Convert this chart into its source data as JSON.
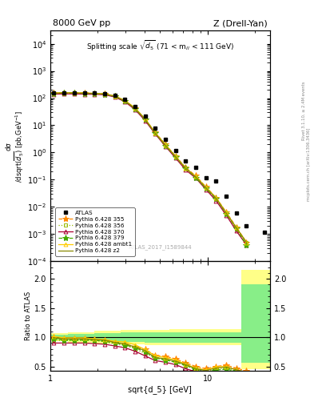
{
  "title_left": "8000 GeV pp",
  "title_right": "Z (Drell-Yan)",
  "plot_title": "Splitting scale $\\sqrt{d_5}$ (71 < m$_{ll}$ < 111 GeV)",
  "ylabel_main": "d$\\sigma$/dsqrt($d_5$) [pb,GeV$^{-1}$]",
  "ylabel_ratio": "Ratio to ATLAS",
  "xlabel": "sqrt{d_5} [GeV]",
  "watermark": "ATLAS_2017_I1589844",
  "right_label1": "Rivet 3.1.10, ≥ 2.4M events",
  "right_label2": "mcplots.cern.ch [arXiv:1306.3436]",
  "xlim": [
    1.0,
    25.0
  ],
  "ylim_main": [
    0.0001,
    30000.0
  ],
  "ylim_ratio": [
    0.42,
    2.3
  ],
  "data_x": [
    1.05,
    1.22,
    1.42,
    1.65,
    1.91,
    2.22,
    2.57,
    2.98,
    3.46,
    4.01,
    4.65,
    5.4,
    6.26,
    7.26,
    8.42,
    9.77,
    11.33,
    13.15,
    15.26,
    17.7,
    23.0
  ],
  "data_y": [
    155,
    160,
    160,
    158,
    155,
    150,
    130,
    90,
    50,
    22,
    8.0,
    3.0,
    1.2,
    0.5,
    0.28,
    0.12,
    0.09,
    0.025,
    0.006,
    0.002,
    0.0012
  ],
  "lines": [
    {
      "label": "Pythia 6.428 355",
      "color": "#ff8800",
      "linestyle": "--",
      "marker": "*",
      "x": [
        1.05,
        1.22,
        1.42,
        1.65,
        1.91,
        2.22,
        2.57,
        2.98,
        3.46,
        4.01,
        4.65,
        5.4,
        6.26,
        7.26,
        8.42,
        9.77,
        11.33,
        13.15,
        15.26,
        17.7
      ],
      "y": [
        155,
        155,
        155,
        152,
        148,
        142,
        118,
        80,
        42,
        17,
        5.5,
        2.0,
        0.75,
        0.28,
        0.14,
        0.055,
        0.022,
        0.0065,
        0.0018,
        0.0005
      ],
      "ratio": [
        1.0,
        0.97,
        0.97,
        0.97,
        0.96,
        0.95,
        0.91,
        0.88,
        0.84,
        0.79,
        0.69,
        0.67,
        0.63,
        0.56,
        0.5,
        0.46,
        0.5,
        0.52,
        0.47,
        0.42
      ]
    },
    {
      "label": "Pythia 6.428 356",
      "color": "#99bb00",
      "linestyle": ":",
      "marker": "s",
      "x": [
        1.05,
        1.22,
        1.42,
        1.65,
        1.91,
        2.22,
        2.57,
        2.98,
        3.46,
        4.01,
        4.65,
        5.4,
        6.26,
        7.26,
        8.42,
        9.77,
        11.33,
        13.15,
        15.26,
        17.7
      ],
      "y": [
        148,
        150,
        150,
        148,
        145,
        138,
        115,
        78,
        40,
        16,
        5.2,
        1.85,
        0.7,
        0.26,
        0.13,
        0.05,
        0.02,
        0.006,
        0.0015,
        0.0005
      ],
      "ratio": [
        0.95,
        0.94,
        0.94,
        0.95,
        0.94,
        0.92,
        0.88,
        0.86,
        0.8,
        0.72,
        0.65,
        0.62,
        0.58,
        0.52,
        0.46,
        0.42,
        0.45,
        0.48,
        0.4,
        0.38
      ]
    },
    {
      "label": "Pythia 6.428 370",
      "color": "#aa0033",
      "linestyle": "-",
      "marker": "^",
      "x": [
        1.05,
        1.22,
        1.42,
        1.65,
        1.91,
        2.22,
        2.57,
        2.98,
        3.46,
        4.01,
        4.65,
        5.4,
        6.26,
        7.26,
        8.42,
        9.77,
        11.33,
        13.15,
        15.26,
        17.7
      ],
      "y": [
        140,
        143,
        143,
        140,
        138,
        133,
        110,
        74,
        38,
        15,
        4.8,
        1.7,
        0.63,
        0.23,
        0.115,
        0.044,
        0.017,
        0.005,
        0.0013,
        0.0004
      ],
      "ratio": [
        0.9,
        0.9,
        0.9,
        0.9,
        0.89,
        0.88,
        0.85,
        0.82,
        0.76,
        0.68,
        0.6,
        0.57,
        0.53,
        0.46,
        0.41,
        0.37,
        0.38,
        0.4,
        0.35,
        0.33
      ]
    },
    {
      "label": "Pythia 6.428 379",
      "color": "#44aa00",
      "linestyle": "--",
      "marker": "*",
      "x": [
        1.05,
        1.22,
        1.42,
        1.65,
        1.91,
        2.22,
        2.57,
        2.98,
        3.46,
        4.01,
        4.65,
        5.4,
        6.26,
        7.26,
        8.42,
        9.77,
        11.33,
        13.15,
        15.26,
        17.7
      ],
      "y": [
        150,
        152,
        152,
        150,
        147,
        140,
        117,
        79,
        41,
        16.5,
        5.1,
        1.82,
        0.69,
        0.26,
        0.12,
        0.048,
        0.02,
        0.0056,
        0.0016,
        0.0004
      ],
      "ratio": [
        0.97,
        0.95,
        0.95,
        0.95,
        0.95,
        0.93,
        0.9,
        0.87,
        0.82,
        0.75,
        0.64,
        0.61,
        0.57,
        0.52,
        0.44,
        0.4,
        0.44,
        0.45,
        0.42,
        0.35
      ]
    },
    {
      "label": "Pythia 6.428 ambt1",
      "color": "#ffcc00",
      "linestyle": "-",
      "marker": "^",
      "x": [
        1.05,
        1.22,
        1.42,
        1.65,
        1.91,
        2.22,
        2.57,
        2.98,
        3.46,
        4.01,
        4.65,
        5.4,
        6.26,
        7.26,
        8.42,
        9.77,
        11.33,
        13.15,
        15.26,
        17.7
      ],
      "y": [
        156,
        158,
        158,
        154,
        151,
        144,
        121,
        83,
        44,
        17.5,
        5.4,
        1.95,
        0.73,
        0.27,
        0.132,
        0.053,
        0.022,
        0.0062,
        0.0017,
        0.0005
      ],
      "ratio": [
        1.01,
        0.99,
        0.99,
        0.99,
        0.97,
        0.96,
        0.93,
        0.92,
        0.87,
        0.79,
        0.68,
        0.65,
        0.61,
        0.54,
        0.47,
        0.44,
        0.49,
        0.5,
        0.44,
        0.4
      ]
    },
    {
      "label": "Pythia 6.428 z2",
      "color": "#888800",
      "linestyle": "-",
      "marker": null,
      "x": [
        1.05,
        1.22,
        1.42,
        1.65,
        1.91,
        2.22,
        2.57,
        2.98,
        3.46,
        4.01,
        4.65,
        5.4,
        6.26,
        7.26,
        8.42,
        9.77,
        11.33,
        13.15,
        15.26,
        17.7
      ],
      "y": [
        153,
        156,
        156,
        152,
        149,
        142,
        118,
        80,
        42,
        17,
        5.2,
        1.88,
        0.71,
        0.266,
        0.128,
        0.051,
        0.021,
        0.006,
        0.0017,
        0.0005
      ],
      "ratio": [
        0.99,
        0.97,
        0.97,
        0.97,
        0.96,
        0.95,
        0.91,
        0.89,
        0.83,
        0.77,
        0.65,
        0.63,
        0.59,
        0.53,
        0.46,
        0.43,
        0.47,
        0.49,
        0.44,
        0.4
      ]
    }
  ],
  "ratio_band_yellow_x": [
    1.0,
    1.3,
    1.9,
    2.8,
    4.0,
    5.7,
    8.0,
    11.5,
    16.5,
    25.0
  ],
  "ratio_band_yellow_low": [
    0.93,
    0.91,
    0.89,
    0.88,
    0.87,
    0.86,
    0.86,
    0.86,
    0.45,
    0.45
  ],
  "ratio_band_yellow_high": [
    1.07,
    1.09,
    1.11,
    1.12,
    1.13,
    1.14,
    1.14,
    1.14,
    2.15,
    2.15
  ],
  "ratio_band_green_x": [
    1.0,
    1.3,
    1.9,
    2.8,
    4.0,
    5.7,
    8.0,
    11.5,
    16.5,
    25.0
  ],
  "ratio_band_green_low": [
    0.96,
    0.95,
    0.93,
    0.92,
    0.91,
    0.91,
    0.91,
    0.91,
    0.56,
    0.56
  ],
  "ratio_band_green_high": [
    1.04,
    1.05,
    1.07,
    1.08,
    1.09,
    1.09,
    1.09,
    1.09,
    1.9,
    1.9
  ]
}
